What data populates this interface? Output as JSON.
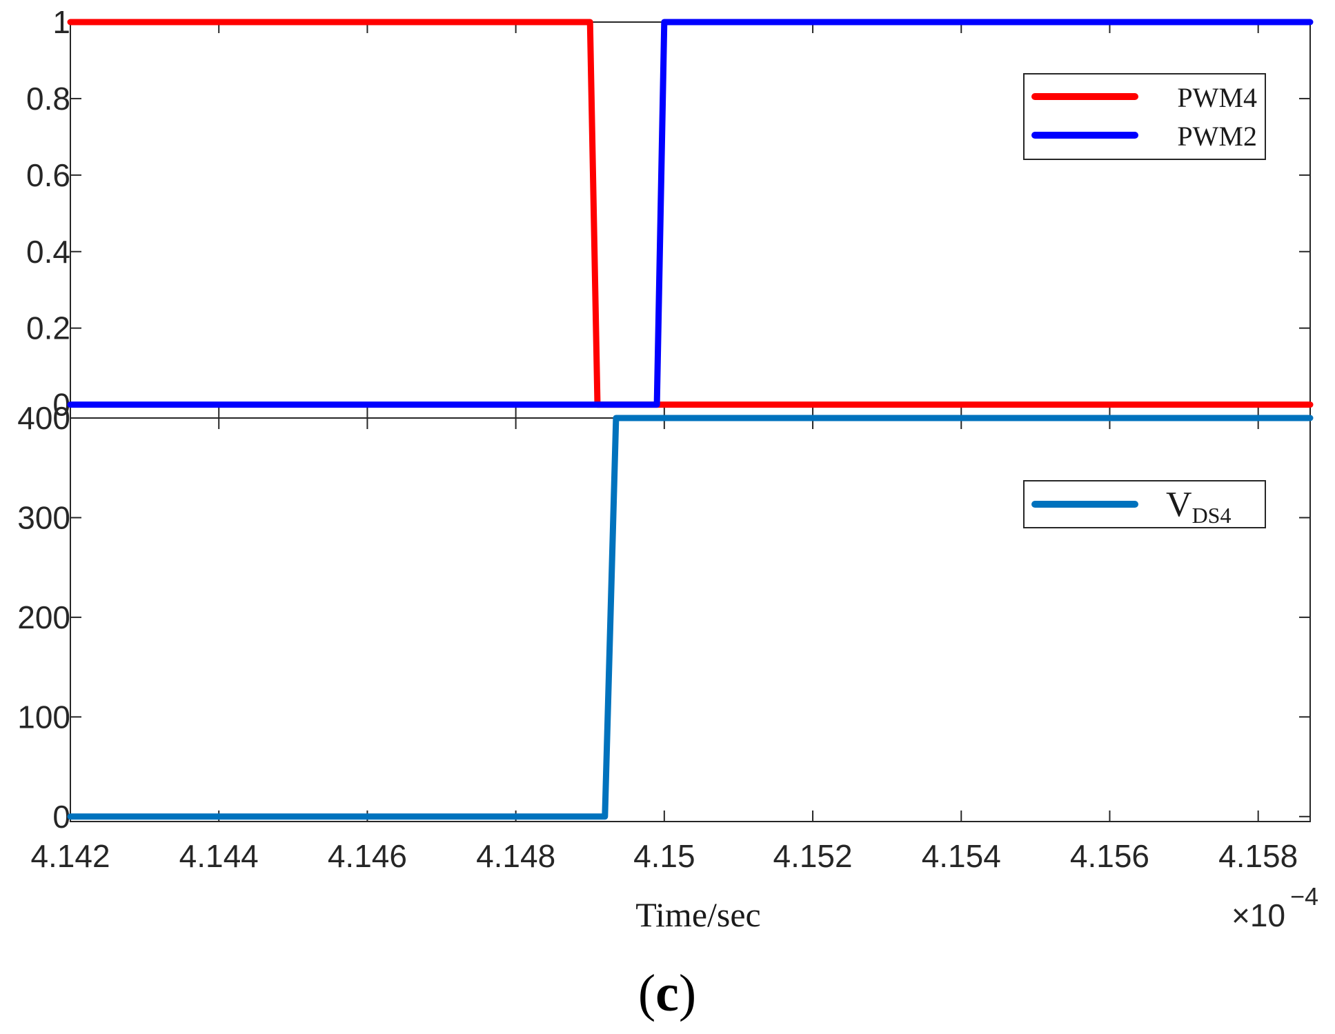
{
  "chart_data": [
    {
      "type": "line",
      "panel": "top",
      "xlim": [
        4.142,
        4.1587
      ],
      "ylim": [
        -0.035,
        1.0
      ],
      "yticks": [
        0,
        0.2,
        0.4,
        0.6,
        0.8,
        1
      ],
      "ytick_labels": [
        "0",
        "0.2",
        "0.4",
        "0.6",
        "0.8",
        "1"
      ],
      "xticks": [
        4.142,
        4.144,
        4.146,
        4.148,
        4.15,
        4.152,
        4.154,
        4.156,
        4.158
      ],
      "grid": false,
      "legend_position": "top-right",
      "series": [
        {
          "name": "PWM4",
          "color": "#ff0000",
          "x": [
            4.142,
            4.149,
            4.1491,
            4.1587
          ],
          "y": [
            1,
            1,
            0,
            0
          ]
        },
        {
          "name": "PWM2",
          "color": "#0000ff",
          "x": [
            4.142,
            4.1499,
            4.15,
            4.1587
          ],
          "y": [
            0,
            0,
            1,
            1
          ]
        }
      ]
    },
    {
      "type": "line",
      "panel": "bottom",
      "xlim": [
        4.142,
        4.1587
      ],
      "ylim": [
        -5,
        400
      ],
      "yticks": [
        0,
        100,
        200,
        300,
        400
      ],
      "ytick_labels": [
        "0",
        "100",
        "200",
        "300",
        "400"
      ],
      "xticks": [
        4.142,
        4.144,
        4.146,
        4.148,
        4.15,
        4.152,
        4.154,
        4.156,
        4.158
      ],
      "xtick_labels": [
        "4.142",
        "4.144",
        "4.146",
        "4.148",
        "4.15",
        "4.152",
        "4.154",
        "4.156",
        "4.158"
      ],
      "xlabel": "Time/sec",
      "x_multiplier_base": "×10",
      "x_multiplier_exponent": "−4",
      "grid": false,
      "legend_position": "top-right",
      "series": [
        {
          "name": "V",
          "name_subscript": "DS4",
          "color": "#0072bd",
          "x": [
            4.142,
            4.1492,
            4.14935,
            4.1587
          ],
          "y": [
            0,
            0,
            400,
            400
          ]
        }
      ]
    }
  ],
  "caption": {
    "open": "(",
    "letter": "c",
    "close": ")"
  }
}
